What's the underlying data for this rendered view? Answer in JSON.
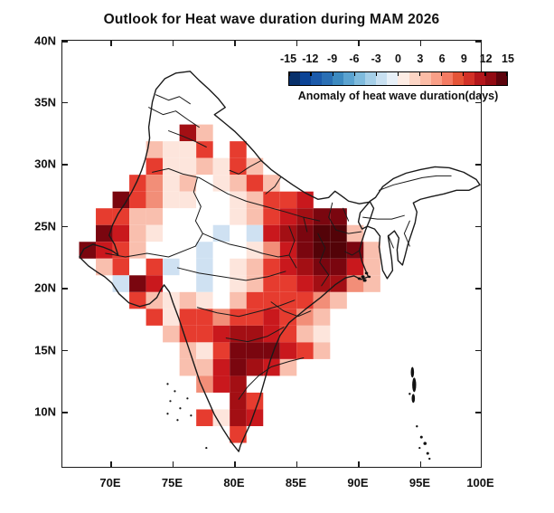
{
  "figure": {
    "title": "Outlook for Heat wave duration during MAM 2026"
  },
  "colorbar": {
    "tick_labels": [
      "-15",
      "-12",
      "-9",
      "-6",
      "-3",
      "0",
      "3",
      "6",
      "9",
      "12",
      "15"
    ],
    "title": "Anomaly of heat wave duration(days)",
    "segment_colors": [
      "#08306b",
      "#0c4496",
      "#1b5aaa",
      "#2a6fb4",
      "#3d8ac0",
      "#5ba3d0",
      "#7fbbdd",
      "#a5cfe8",
      "#c8e0f1",
      "#e7f0f8",
      "#fdece4",
      "#fcd5c5",
      "#fbbca6",
      "#f99f87",
      "#f47b63",
      "#e55437",
      "#d23127",
      "#b3161b",
      "#920a12",
      "#5c030c"
    ]
  },
  "axes": {
    "x_tick_labels": [
      "70E",
      "75E",
      "80E",
      "85E",
      "90E",
      "95E",
      "100E"
    ],
    "y_tick_labels": [
      "40N",
      "35N",
      "30N",
      "25N",
      "20N",
      "15N",
      "10N"
    ]
  },
  "chart_data": {
    "type": "heatmap",
    "title": "Outlook for Heat wave duration during MAM 2026",
    "variable": "Anomaly of heat wave duration(days)",
    "region": "India",
    "colorbar_range": [
      -15,
      15
    ],
    "colorbar_tick_step": 3,
    "x_axis": {
      "ticks": [
        70,
        75,
        80,
        85,
        90,
        95,
        100
      ],
      "unit": "E",
      "approx_range": [
        66,
        100
      ]
    },
    "y_axis": {
      "ticks": [
        40,
        35,
        30,
        25,
        20,
        15,
        10
      ],
      "unit": "N",
      "approx_range": [
        5.5,
        40
      ]
    },
    "grid": {
      "cols": 25,
      "rows": 25,
      "cell_deg": 1.36,
      "origin": "top-left of grid = NW corner of plot (approx 66E, 40N)",
      "code_values_days": {
        "a": -2,
        "w": 0,
        "1": 1,
        "2": 3,
        "3": 5,
        "4": 7,
        "5": 9,
        "6": 11,
        "7": 13,
        "8": 15,
        ".": null
      },
      "palette": {
        "a": "#cfe1f2",
        "w": "#ffffff",
        "1": "#fde5dc",
        "2": "#f9bfae",
        "3": "#f28e78",
        "4": "#e63c2f",
        "5": "#c9181d",
        "6": "#a30f14",
        "7": "#7a060f",
        "8": "#530308"
      },
      "rows_codes": [
        "",
        "",
        "",
        "",
        "",
        ".......62",
        ".....2114.4",
        ".....4112142",
        "....4312w1242",
        "...74311ww12445",
        "..4422wwww1245677",
        "..7521wwwawa567882",
        ".7542wwwaww13578872",
        "..24w4awaw124567752",
        "...a75wwaw124456632",
        "....42121w2444432",
        ".....41443445432",
        "......2445665421",
        ".......214777542",
        ".......2257652",
        "........356",
        "..........64",
        "........4165",
        "..........4",
        ""
      ]
    }
  }
}
